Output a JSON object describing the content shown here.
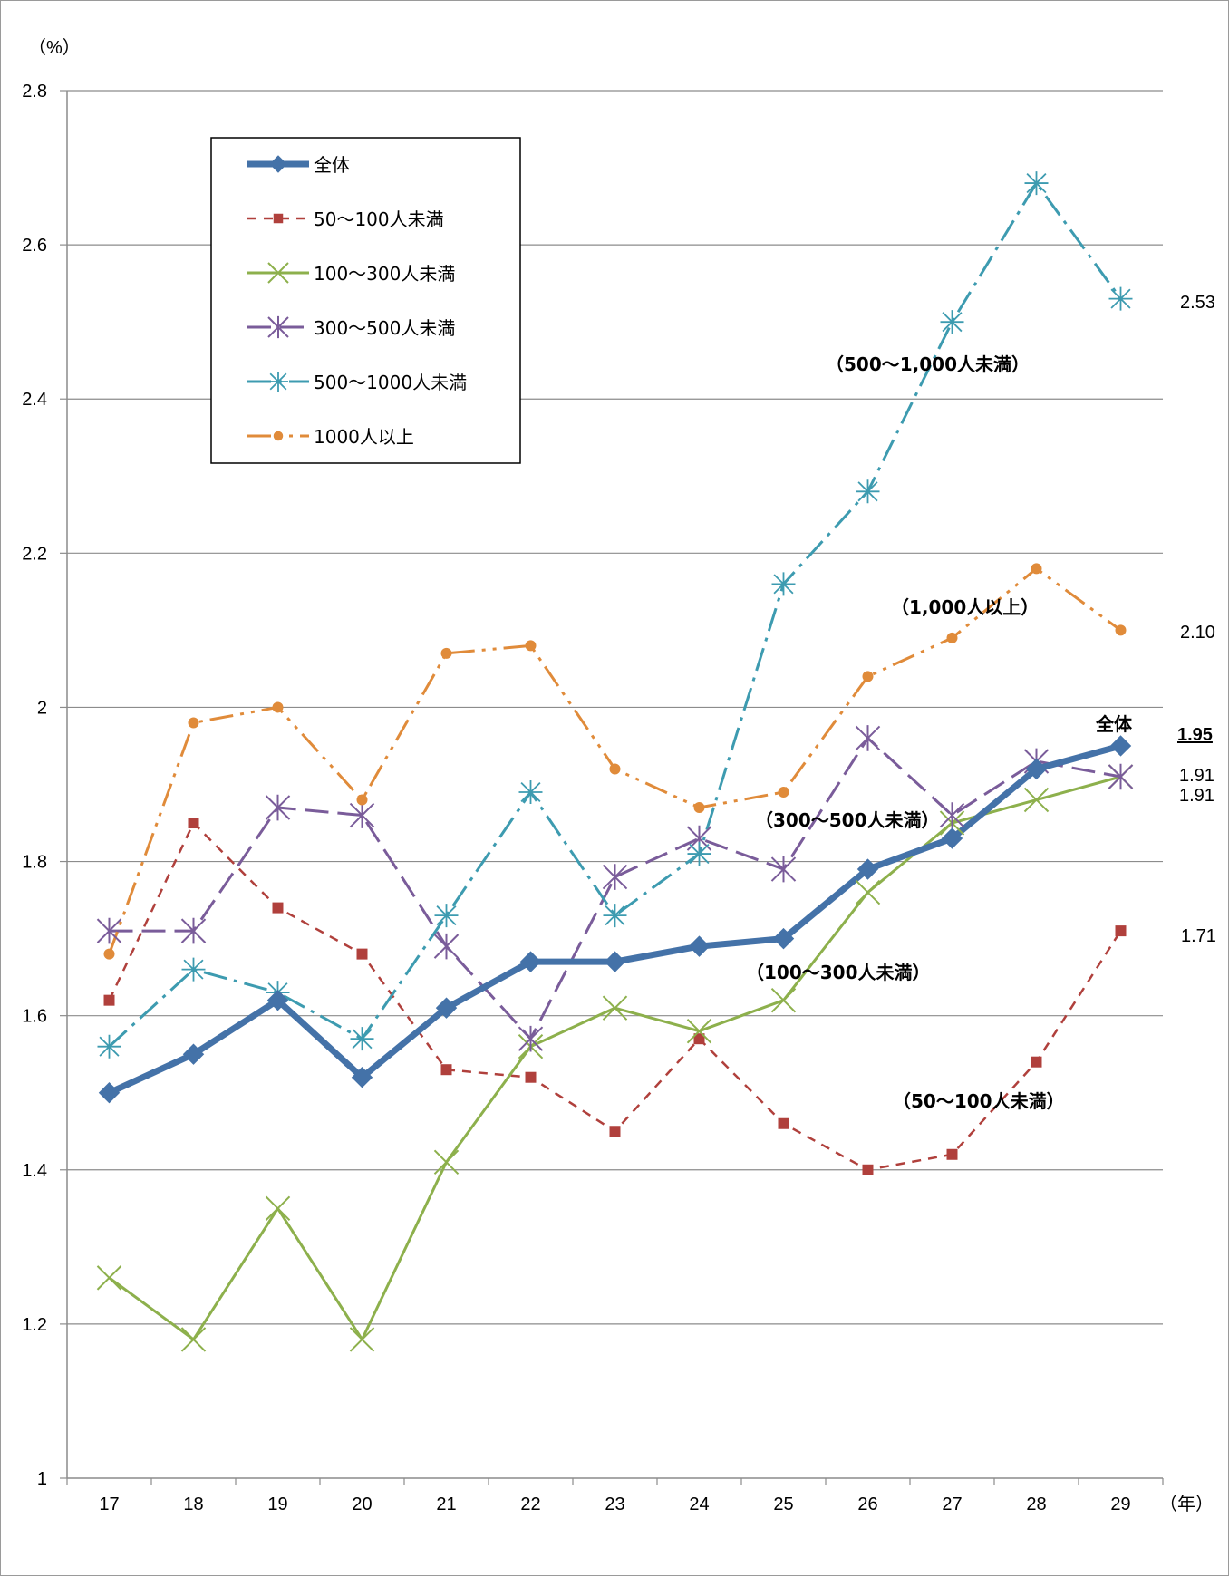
{
  "chart_data": {
    "type": "line",
    "y_unit": "（%）",
    "x_unit": "（年）",
    "ylim": [
      1,
      2.8
    ],
    "y_step": 0.2,
    "y_ticks": [
      "1",
      "1.2",
      "1.4",
      "1.6",
      "1.8",
      "2",
      "2.2",
      "2.4",
      "2.6",
      "2.8"
    ],
    "grid": true,
    "legend_position": "top-left",
    "categories": [
      "17",
      "18",
      "19",
      "20",
      "21",
      "22",
      "23",
      "24",
      "25",
      "26",
      "27",
      "28",
      "29"
    ],
    "series": [
      {
        "name": "全体",
        "color": "#4472A8",
        "dash": "",
        "width": 7,
        "marker": "diamond",
        "values": [
          1.5,
          1.55,
          1.62,
          1.52,
          1.61,
          1.67,
          1.67,
          1.69,
          1.7,
          1.79,
          1.83,
          1.92,
          1.95
        ]
      },
      {
        "name": "50～100人未満",
        "color": "#B0403C",
        "dash": "10,8",
        "width": 2.5,
        "marker": "square",
        "values": [
          1.62,
          1.85,
          1.74,
          1.68,
          1.53,
          1.52,
          1.45,
          1.57,
          1.46,
          1.4,
          1.42,
          1.54,
          1.71
        ]
      },
      {
        "name": "100～300人未満",
        "color": "#8DB04C",
        "dash": "",
        "width": 3,
        "marker": "x",
        "values": [
          1.26,
          1.18,
          1.35,
          1.18,
          1.41,
          1.56,
          1.61,
          1.58,
          1.62,
          1.76,
          1.85,
          1.88,
          1.91
        ]
      },
      {
        "name": "300～500人未満",
        "color": "#7A5C9A",
        "dash": "26,10",
        "width": 3,
        "marker": "asterisk",
        "values": [
          1.71,
          1.71,
          1.87,
          1.86,
          1.69,
          1.57,
          1.78,
          1.83,
          1.79,
          1.96,
          1.86,
          1.93,
          1.91
        ]
      },
      {
        "name": "500～1000人未満",
        "color": "#3D9BB0",
        "dash": "26,8,4,8",
        "width": 3,
        "marker": "star",
        "values": [
          1.56,
          1.66,
          1.63,
          1.57,
          1.73,
          1.89,
          1.73,
          1.81,
          2.16,
          2.28,
          2.5,
          2.68,
          2.53
        ]
      },
      {
        "name": "1000人以上",
        "color": "#E08B3A",
        "dash": "26,8,4,8,4,8",
        "width": 3,
        "marker": "circle",
        "values": [
          1.68,
          1.98,
          2.0,
          1.88,
          2.07,
          2.08,
          1.92,
          1.87,
          1.89,
          2.04,
          2.09,
          2.18,
          2.1
        ]
      }
    ],
    "annotations": [
      "（500～1,000人未満）",
      "（1,000人以上）",
      "全体",
      "（300～500人未満）",
      "（100～300人未満）",
      "（50～100人未満）"
    ],
    "end_labels": [
      "2.53",
      "2.10",
      "1.95",
      "1.91",
      "1.91",
      "1.71"
    ]
  }
}
